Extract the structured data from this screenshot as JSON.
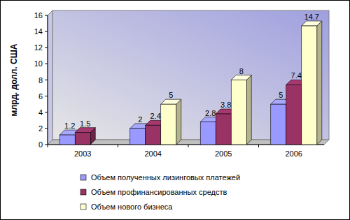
{
  "chart_data": {
    "type": "bar",
    "y_label": "млрд. долл. США",
    "categories": [
      "2003",
      "2004",
      "2005",
      "2006"
    ],
    "series": [
      {
        "name": "Объем полученных лизинговых платежей",
        "color": "#9999ff",
        "values": [
          1.2,
          2,
          2.8,
          5
        ]
      },
      {
        "name": "Объем профинансированных средств",
        "color": "#993366",
        "values": [
          1.5,
          2.4,
          3.8,
          7.4
        ]
      },
      {
        "name": "Объем нового бизнеса",
        "color": "#ffffcc",
        "values": [
          null,
          5,
          8,
          14.7
        ]
      }
    ],
    "ylim": [
      0,
      16
    ],
    "yticks": [
      0,
      2,
      4,
      6,
      8,
      10,
      12,
      14,
      16
    ],
    "grid": false,
    "data_labels": true,
    "legend": "bottom"
  }
}
